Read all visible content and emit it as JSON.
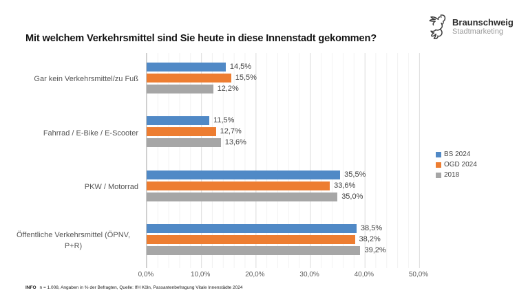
{
  "header": {
    "title": "Mit welchem Verkehrsmittel sind Sie heute in diese Innenstadt gekommen?",
    "logo": {
      "name": "Braunschweig",
      "subtitle": "Stadtmarketing"
    }
  },
  "chart_data": {
    "type": "bar",
    "orientation": "horizontal",
    "title": "Mit welchem Verkehrsmittel sind Sie heute in diese Innenstadt gekommen?",
    "categories": [
      {
        "label": "Gar kein Verkehrsmittel/zu Fuß",
        "lines": [
          "Gar kein Verkehrsmittel/zu Fuß"
        ]
      },
      {
        "label": "Fahrrad / E-Bike / E-Scooter",
        "lines": [
          "Fahrrad / E-Bike / E-Scooter"
        ]
      },
      {
        "label": "PKW / Motorrad",
        "lines": [
          "PKW / Motorrad"
        ]
      },
      {
        "label": "Öffentliche Verkehrsmittel (ÖPNV, P+R)",
        "lines": [
          "Öffentliche Verkehrsmittel (ÖPNV,",
          "P+R)"
        ]
      }
    ],
    "series": [
      {
        "name": "BS 2024",
        "color": "#5089C6",
        "values": [
          14.5,
          11.5,
          35.5,
          38.5
        ],
        "labels": [
          "14,5%",
          "11,5%",
          "35,5%",
          "38,5%"
        ]
      },
      {
        "name": "OGD 2024",
        "color": "#ED7D31",
        "values": [
          15.5,
          12.7,
          33.6,
          38.2
        ],
        "labels": [
          "15,5%",
          "12,7%",
          "33,6%",
          "38,2%"
        ]
      },
      {
        "name": "2018",
        "color": "#A6A6A6",
        "values": [
          12.2,
          13.6,
          35.0,
          39.2
        ],
        "labels": [
          "12,2%",
          "13,6%",
          "35,0%",
          "39,2%"
        ]
      }
    ],
    "x_axis": {
      "min": 0,
      "max": 50,
      "major_unit": 10,
      "minor_unit": 2,
      "ticks": [
        "0,0%",
        "10,0%",
        "20,0%",
        "30,0%",
        "40,0%",
        "50,0%"
      ]
    },
    "grid": true,
    "legend_position": "right",
    "value_labels": "outside-end"
  },
  "footer": {
    "info_label": "INFO",
    "text": "n = 1.008, Angaben in % der Befragten, Quelle: IfH Köln, Passantenbefragung Vitale Innenstädte 2024"
  }
}
